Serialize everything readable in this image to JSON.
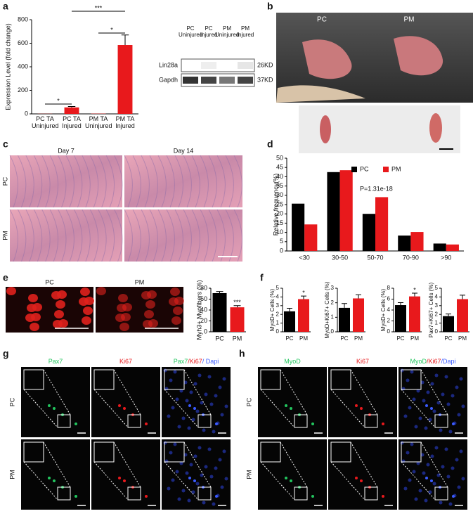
{
  "panel_labels": [
    "a",
    "b",
    "c",
    "d",
    "e",
    "f",
    "g",
    "h"
  ],
  "chart_data": [
    {
      "type": "bar",
      "ylabel": "Expression Level (fold change)",
      "categories": [
        "PC TA Uninjured",
        "PC TA Injured",
        "PM TA Uninjured",
        "PM TA Injured"
      ],
      "values": [
        1,
        55,
        2,
        585
      ],
      "errors": [
        null,
        8,
        null,
        85
      ],
      "color": "#e8191c",
      "ylim": [
        0,
        800
      ],
      "yticks": [
        0,
        200,
        400,
        600,
        800
      ],
      "annotations": [
        "*",
        "***",
        "*"
      ]
    },
    {
      "type": "bar",
      "ylabel": "Relative frequency(%)",
      "categories": [
        "<30",
        "30-50",
        "50-70",
        "70-90",
        ">90"
      ],
      "series": [
        {
          "name": "PC",
          "color": "#000000",
          "values": [
            25.5,
            42.5,
            20,
            8.3,
            4
          ]
        },
        {
          "name": "PM",
          "color": "#e8191c",
          "values": [
            14.3,
            43.5,
            29,
            10.2,
            3.5
          ]
        }
      ],
      "ylim": [
        0,
        50
      ],
      "yticks": [
        0,
        5,
        10,
        15,
        20,
        25,
        30,
        35,
        40,
        45,
        50
      ],
      "legend": "top-right",
      "annotation": "P=1.31e-18"
    },
    {
      "type": "bar",
      "ylabel": "Myh3+ Myofibers (%)",
      "categories": [
        "PC",
        "PM"
      ],
      "series": [
        {
          "color": "#000000",
          "values": [
            71,
            null
          ],
          "errors": [
            3,
            null
          ]
        },
        {
          "color": "#e8191c",
          "values": [
            null,
            45
          ],
          "errors": [
            null,
            3
          ]
        }
      ],
      "ylim": [
        0,
        80
      ],
      "yticks": [
        0,
        20,
        40,
        60,
        80
      ],
      "annotations": [
        "***"
      ]
    },
    {
      "type": "bar",
      "ylabel": "MyoD+ Cells (%)",
      "categories": [
        "PC",
        "PM"
      ],
      "series": [
        {
          "color": "#000000",
          "values": [
            2.35,
            null
          ],
          "errors": [
            0.35,
            null
          ]
        },
        {
          "color": "#e8191c",
          "values": [
            null,
            3.75
          ],
          "errors": [
            null,
            0.35
          ]
        }
      ],
      "ylim": [
        0,
        5
      ],
      "yticks": [
        0,
        1,
        2,
        3,
        4,
        5
      ],
      "annotations": [
        "*"
      ]
    },
    {
      "type": "bar",
      "ylabel": "MyoD+Ki67+ Cells (%)",
      "categories": [
        "PC",
        "PM"
      ],
      "series": [
        {
          "color": "#000000",
          "values": [
            1.65,
            null
          ],
          "errors": [
            0.3,
            null
          ]
        },
        {
          "color": "#e8191c",
          "values": [
            null,
            2.3
          ],
          "errors": [
            null,
            0.25
          ]
        }
      ],
      "ylim": [
        0,
        3
      ],
      "yticks": [
        0,
        1,
        2,
        3
      ]
    },
    {
      "type": "bar",
      "ylabel": "MyoD+ Cells (%)",
      "categories": [
        "PC",
        "PM"
      ],
      "series": [
        {
          "color": "#000000",
          "values": [
            4.9,
            null
          ],
          "errors": [
            0.45,
            null
          ]
        },
        {
          "color": "#e8191c",
          "values": [
            null,
            6.5
          ],
          "errors": [
            null,
            0.6
          ]
        }
      ],
      "ylim": [
        0,
        8
      ],
      "yticks": [
        0,
        2,
        4,
        6,
        8
      ],
      "annotations": [
        "*"
      ]
    },
    {
      "type": "bar",
      "ylabel": "Pax7+Ki67+ Cells (%)",
      "categories": [
        "PC",
        "PM"
      ],
      "series": [
        {
          "color": "#000000",
          "values": [
            1.8,
            null
          ],
          "errors": [
            0.25,
            null
          ]
        },
        {
          "color": "#e8191c",
          "values": [
            null,
            3.75
          ],
          "errors": [
            null,
            0.45
          ]
        }
      ],
      "ylim": [
        0,
        5
      ],
      "yticks": [
        0,
        1,
        2,
        3,
        4,
        5
      ]
    }
  ],
  "blot": {
    "lanes": [
      "PC Uninjured",
      "PC Injured",
      "PM Uninjured",
      "PM Injured"
    ],
    "rows": [
      {
        "name": "Lin28a",
        "size": "26KD"
      },
      {
        "name": "Gapdh",
        "size": "37KD"
      }
    ]
  },
  "photo_b": {
    "labels": [
      "PC",
      "PM"
    ]
  },
  "histology_c": {
    "columns": [
      "Day 7",
      "Day 14"
    ],
    "rows": [
      "PC",
      "PM"
    ]
  },
  "images_e": {
    "columns": [
      "PC",
      "PM"
    ]
  },
  "fluor_g": {
    "rows": [
      "PC",
      "PM"
    ],
    "columns": [
      [
        {
          "text": "Pax7",
          "color": "#22c55e"
        }
      ],
      [
        {
          "text": "Ki67",
          "color": "#e8191c"
        }
      ],
      [
        {
          "text": "Pax7",
          "color": "#22c55e"
        },
        {
          "text": "/Ki67",
          "color": "#e8191c"
        },
        {
          "text": "/ Dapi",
          "color": "#3b5bff"
        }
      ]
    ]
  },
  "fluor_h": {
    "rows": [
      "PC",
      "PM"
    ],
    "columns": [
      [
        {
          "text": "MyoD",
          "color": "#22c55e"
        }
      ],
      [
        {
          "text": "Ki67",
          "color": "#e8191c"
        }
      ],
      [
        {
          "text": "MyoD",
          "color": "#22c55e"
        },
        {
          "text": "/Ki67",
          "color": "#e8191c"
        },
        {
          "text": "/Dapi",
          "color": "#3b5bff"
        }
      ]
    ]
  }
}
